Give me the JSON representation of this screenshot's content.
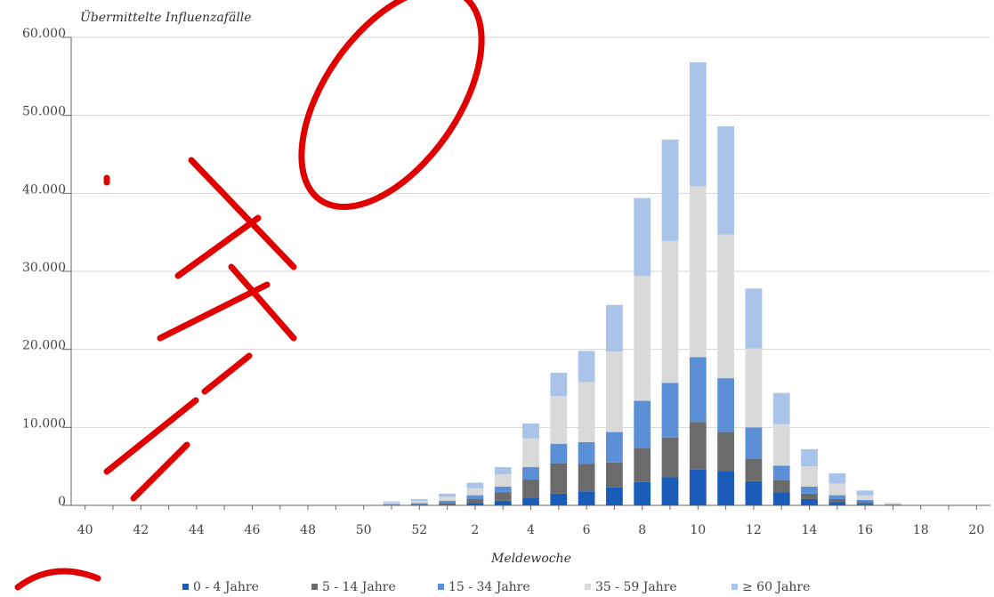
{
  "chart_data": {
    "type": "stacked-bar",
    "y_label": "Übermittelte Influenzafälle",
    "x_label": "Meldewoche",
    "categories": [
      "40",
      null,
      "42",
      null,
      "44",
      null,
      "46",
      null,
      "48",
      null,
      "50",
      null,
      "52",
      null,
      "2",
      null,
      "4",
      null,
      "6",
      null,
      "8",
      null,
      "10",
      null,
      "12",
      null,
      "14",
      null,
      "16",
      null,
      "18",
      null,
      "20"
    ],
    "ylim": [
      0,
      60000
    ],
    "yticks": [
      0,
      {
        "value": 10000,
        "label": "10.000"
      },
      {
        "value": 20000,
        "label": "20.000"
      },
      {
        "value": 30000,
        "label": "30.000"
      },
      {
        "value": 40000,
        "label": "40.000"
      },
      {
        "value": 50000,
        "label": "50.000"
      },
      {
        "value": 60000,
        "label": "60.000"
      }
    ],
    "grid": true,
    "series": [
      {
        "name": "0 - 4 Jahre",
        "color": "#1a5cb8",
        "values": [
          0,
          0,
          0,
          0,
          0,
          0,
          0,
          0,
          0,
          0,
          0,
          30,
          50,
          100,
          300,
          600,
          1000,
          1500,
          1800,
          2300,
          3000,
          3600,
          4600,
          4400,
          3100,
          1700,
          800,
          400,
          200,
          20,
          0,
          0,
          0
        ]
      },
      {
        "name": "5 - 14 Jahre",
        "color": "#6b6b6b",
        "values": [
          0,
          0,
          0,
          0,
          0,
          0,
          0,
          0,
          0,
          0,
          0,
          60,
          100,
          200,
          500,
          1100,
          2300,
          3900,
          3500,
          3200,
          4300,
          5100,
          6100,
          5000,
          2900,
          1500,
          700,
          400,
          200,
          40,
          0,
          0,
          0
        ]
      },
      {
        "name": "15 - 34 Jahre",
        "color": "#5b8fd6",
        "values": [
          0,
          0,
          0,
          0,
          0,
          0,
          0,
          0,
          0,
          0,
          0,
          80,
          150,
          300,
          500,
          700,
          1600,
          2500,
          2800,
          3900,
          6100,
          7000,
          8300,
          6900,
          4000,
          1900,
          900,
          500,
          300,
          60,
          0,
          0,
          0
        ]
      },
      {
        "name": "35 - 59 Jahre",
        "color": "#d9d9d9",
        "values": [
          0,
          0,
          0,
          0,
          0,
          0,
          0,
          0,
          0,
          0,
          0,
          200,
          300,
          500,
          900,
          1600,
          3700,
          6100,
          7700,
          10300,
          16000,
          18200,
          21900,
          18400,
          10100,
          5300,
          2600,
          1500,
          600,
          120,
          0,
          0,
          0
        ]
      },
      {
        "name": "≥ 60 Jahre",
        "color": "#a9c4e8",
        "values": [
          0,
          0,
          0,
          0,
          0,
          0,
          0,
          0,
          0,
          0,
          0,
          130,
          200,
          400,
          700,
          900,
          1900,
          3000,
          4000,
          6000,
          10000,
          13000,
          15900,
          13900,
          7700,
          4000,
          2200,
          1300,
          600,
          60,
          0,
          0,
          0
        ]
      }
    ]
  }
}
